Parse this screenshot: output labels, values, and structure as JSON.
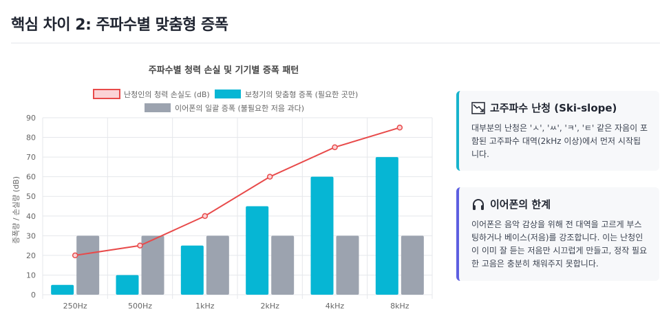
{
  "section_heading": "핵심 차이 2: 주파수별 맞춤형 증폭",
  "chart_data": {
    "type": "bar",
    "title": "주파수별 청력 손실 및 기기별 증폭 패턴",
    "categories": [
      "250Hz",
      "500Hz",
      "1kHz",
      "2kHz",
      "4kHz",
      "8kHz"
    ],
    "ylabel": "증폭량 / 손실량 (dB)",
    "xlabel": "",
    "ylim": [
      0,
      90
    ],
    "yticks": [
      0,
      10,
      20,
      30,
      40,
      50,
      60,
      70,
      80,
      90
    ],
    "grid": true,
    "legend_position": "top",
    "series": [
      {
        "name": "난청인의 청력 손실도 (dB)",
        "type": "line",
        "color": "#e84a4a",
        "fill": "#fbd3d6",
        "values": [
          20,
          25,
          40,
          60,
          75,
          85
        ]
      },
      {
        "name": "보청기의 맞춤형 증폭 (필요한 곳만)",
        "type": "bar",
        "color": "#06b6d4",
        "values": [
          5,
          10,
          25,
          45,
          60,
          70
        ]
      },
      {
        "name": "이어폰의 일괄 증폭 (불필요한 저음 과다)",
        "type": "bar",
        "color": "#9ca3af",
        "values": [
          30,
          30,
          30,
          30,
          30,
          30
        ]
      }
    ]
  },
  "cards": [
    {
      "icon": "chart-down-icon",
      "title": "고주파수 난청 (Ski-slope)",
      "body": "대부분의 난청은 'ㅅ', 'ㅆ', 'ㅋ', 'ㅌ' 같은 자음이 포함된 고주파수 대역(2kHz 이상)에서 먼저 시작됩니다.",
      "accent": "#17b3cc"
    },
    {
      "icon": "headphones-icon",
      "title": "이어폰의 한계",
      "body": "이어폰은 음악 감상을 위해 전 대역을 고르게 부스팅하거나 베이스(저음)를 강조합니다. 이는 난청인이 이미 잘 듣는 저음만 시끄럽게 만들고, 정작 필요한 고음은 충분히 채워주지 못합니다.",
      "accent": "#5d5fe0"
    }
  ]
}
